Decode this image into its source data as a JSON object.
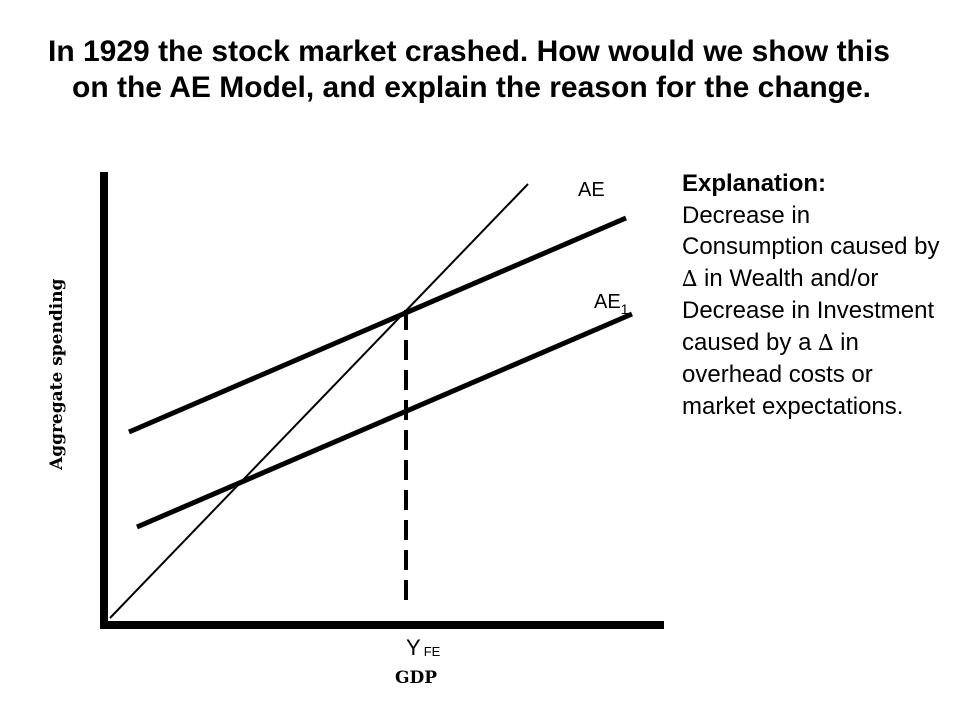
{
  "slide": {
    "title": "In 1929 the stock market crashed. How would we show this on the AE Model, and explain the reason for the change."
  },
  "graph": {
    "y_axis_label": "Aggregate spending",
    "x_axis_label": "GDP",
    "curve_ae_label": "AE",
    "curve_ae1_label_main": "AE",
    "curve_ae1_label_sub": "1",
    "yfe_label_main": "Y",
    "yfe_label_sub": "FE"
  },
  "explanation": {
    "heading": "Explanation:",
    "text_1": "Decrease in Consumption caused by ",
    "delta_1": "∆",
    "text_2": " in Wealth and/or Decrease in Investment caused by a ",
    "delta_2": "∆",
    "text_3": " in overhead costs or market expectations."
  }
}
